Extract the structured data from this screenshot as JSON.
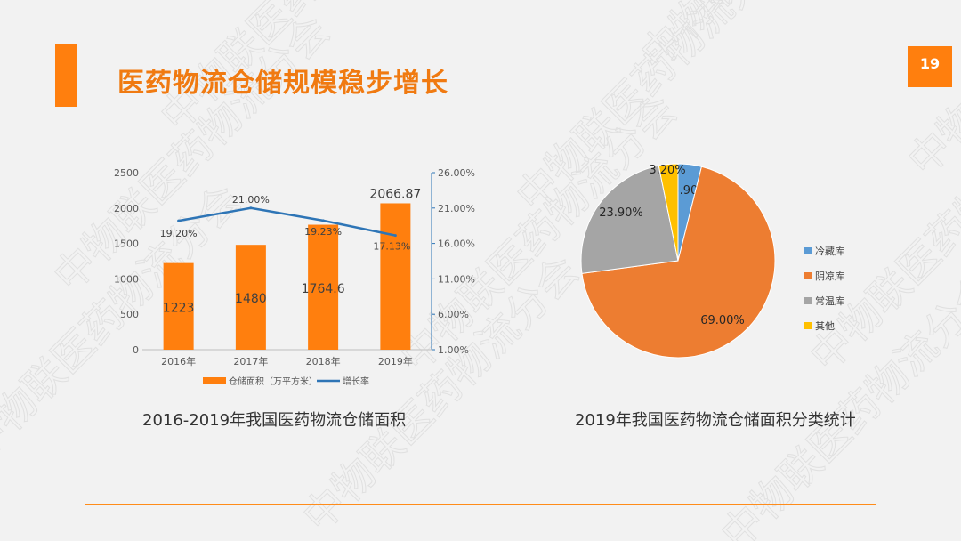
{
  "slide": {
    "title": "医药物流仓储规模稳步增长",
    "page_number": "19",
    "accent_color": "#ff7f0e",
    "watermark": "中物联医药物流分会"
  },
  "chart_data": [
    {
      "type": "bar",
      "title": "2016-2019年我国医药物流仓储面积",
      "categories": [
        "2016年",
        "2017年",
        "2018年",
        "2019年"
      ],
      "series": [
        {
          "name": "仓储面积（万平方米）",
          "type": "bar",
          "axis": "left",
          "color": "#ff7f0e",
          "values": [
            1223,
            1480,
            1764.6,
            2066.87
          ],
          "labels": [
            "1223",
            "1480",
            "1764.6",
            "2066.87"
          ]
        },
        {
          "name": "增长率",
          "type": "line",
          "axis": "right",
          "color": "#2e75b6",
          "values": [
            19.2,
            21.0,
            19.23,
            17.13
          ],
          "labels": [
            "19.20%",
            "21.00%",
            "19.23%",
            "17.13%"
          ]
        }
      ],
      "ylim": [
        0,
        2500
      ],
      "yticks": [
        "0",
        "500",
        "1000",
        "1500",
        "2000",
        "2500"
      ],
      "y2lim": [
        1,
        26
      ],
      "y2ticks": [
        "1.00%",
        "6.00%",
        "11.00%",
        "16.00%",
        "21.00%",
        "26.00%"
      ],
      "legend_position": "bottom",
      "grid": false
    },
    {
      "type": "pie",
      "title": "2019年我国医药物流仓储面积分类统计",
      "slices": [
        {
          "label": "冷藏库",
          "value": 3.9,
          "text": "3.90%",
          "color": "#5b9bd5"
        },
        {
          "label": "阴凉库",
          "value": 69.0,
          "text": "69.00%",
          "color": "#ed7d31"
        },
        {
          "label": "常温库",
          "value": 23.9,
          "text": "23.90%",
          "color": "#a5a5a5"
        },
        {
          "label": "其他",
          "value": 3.2,
          "text": "3.20%",
          "color": "#ffc000"
        }
      ],
      "legend_position": "right"
    }
  ]
}
